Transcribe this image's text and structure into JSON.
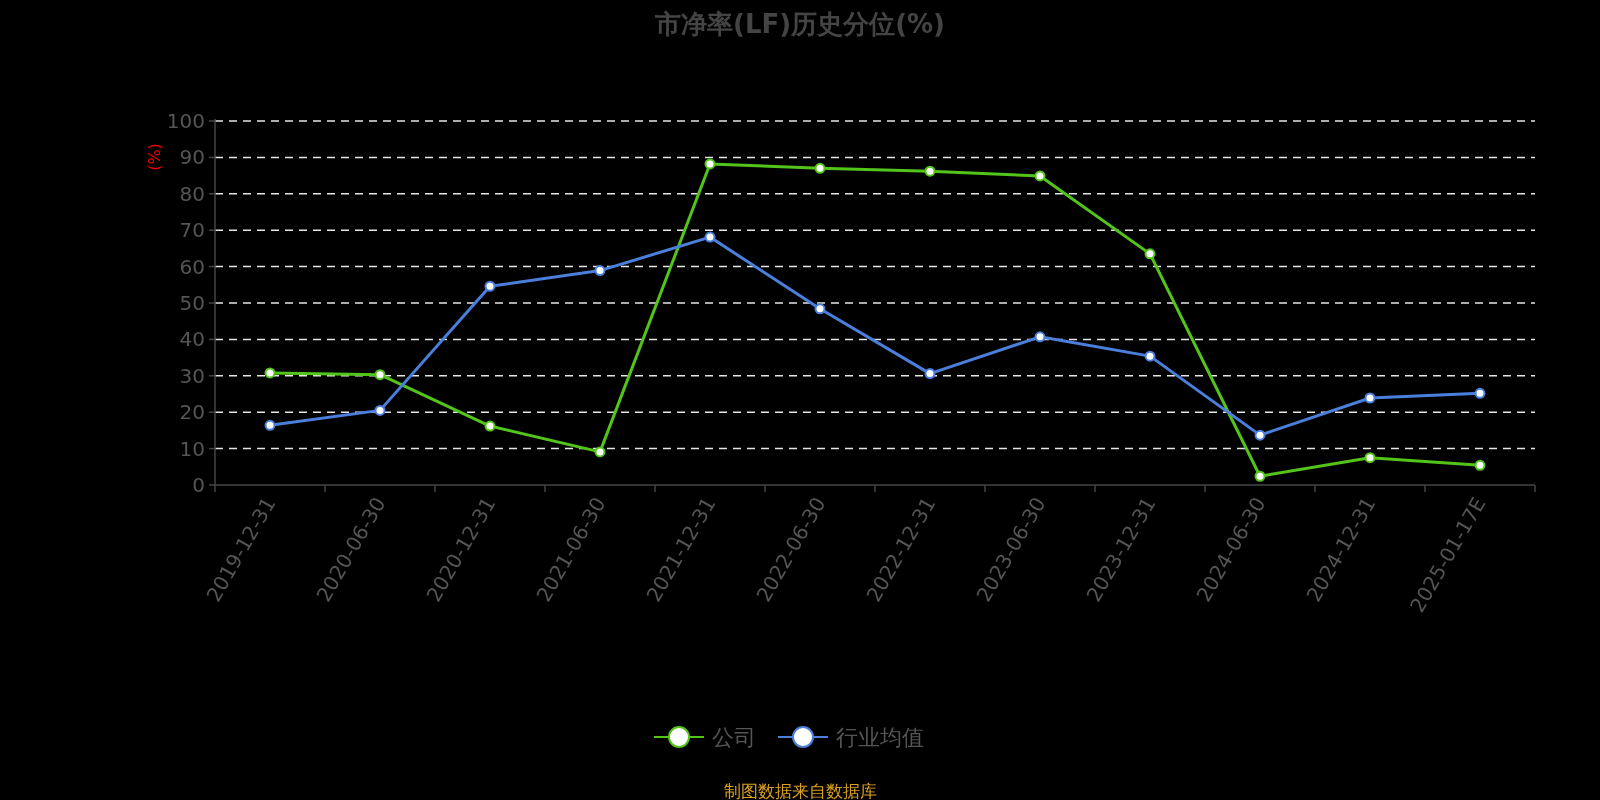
{
  "chart_data": {
    "type": "line",
    "title": "市净率(LF)历史分位(%)",
    "ylabel": "(%)",
    "categories": [
      "2019-12-31",
      "2020-06-30",
      "2020-12-31",
      "2021-06-30",
      "2021-12-31",
      "2022-06-30",
      "2022-12-31",
      "2023-06-30",
      "2023-12-31",
      "2024-06-30",
      "2024-12-31",
      "2025-01-17E"
    ],
    "series": [
      {
        "name": "公司",
        "color": "#52c41a",
        "values": [
          30.8,
          30.3,
          16.2,
          9.1,
          88.2,
          87.0,
          86.2,
          84.9,
          63.5,
          2.4,
          7.5,
          5.4
        ]
      },
      {
        "name": "行业均值",
        "color": "#4a7fdc",
        "values": [
          16.4,
          20.5,
          54.6,
          58.9,
          68.1,
          48.4,
          30.6,
          40.7,
          35.4,
          13.7,
          23.9,
          25.2
        ]
      }
    ],
    "ylim": [
      0,
      100
    ],
    "yticks": [
      0,
      10,
      20,
      30,
      40,
      50,
      60,
      70,
      80,
      90,
      100
    ],
    "grid": "y",
    "legend": "bottom",
    "marker": "circle",
    "line_style": "solid",
    "annotations": [
      "制图数据来自数据库"
    ]
  }
}
